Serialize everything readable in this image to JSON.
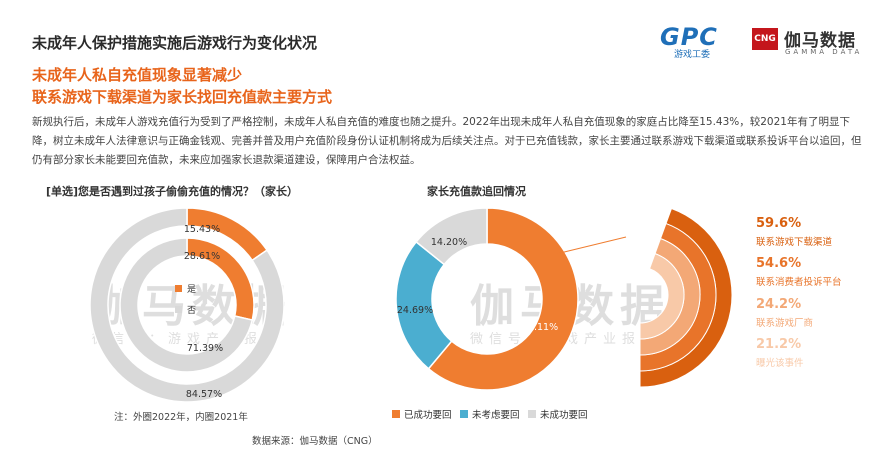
{
  "page_title": "未成年人保护措施实施后游戏行为变化状况",
  "logo_gpc": {
    "big": "GPC",
    "small": "游戏工委"
  },
  "logo_cng": {
    "mark": "CNG",
    "cn": "伽马数据",
    "en": "GAMMA DATA"
  },
  "headline": [
    "未成年人私自充值现象显著减少",
    "联系游戏下载渠道为家长找回充值款主要方式"
  ],
  "body_text": "新规执行后，未成年人游戏充值行为受到了严格控制，未成年人私自充值的难度也随之提升。2022年出现未成年人私自充值现象的家庭占比降至15.43%，较2021年有了明显下降，树立未成年人法律意识与正确金钱观、完善并普及用户充值阶段身份认证机制将成为后续关注点。对于已充值钱款，家长主要通过联系游戏下载渠道或联系投诉平台以追回，但仍有部分家长未能要回充值款，未来应加强家长退款渠道建设，保障用户合法权益。",
  "watermark": {
    "cn": "伽马数据",
    "sub": "微信号：游戏产业报告"
  },
  "note": "注：外圈2022年，内圈2021年",
  "source": "数据来源：伽马数据（CNG）",
  "colors": {
    "orange": "#ef7d30",
    "light_gray": "#d9d9d9",
    "teal": "#4baed0",
    "dark_orange": "#d9600f"
  },
  "chart_data": [
    {
      "type": "pie",
      "subtype": "nested-donut",
      "title": "[单选]您是否遇到过孩子偷偷充值的情况？（家长）",
      "legend": [
        "是",
        "否"
      ],
      "outer": {
        "name": "2022年",
        "values": [
          15.43,
          84.57
        ],
        "labels": [
          "15.43%",
          "84.57%"
        ]
      },
      "inner": {
        "name": "2021年",
        "values": [
          28.61,
          71.39
        ],
        "labels": [
          "28.61%",
          "71.39%"
        ]
      }
    },
    {
      "type": "pie",
      "subtype": "donut",
      "title": "家长充值款追回情况",
      "categories": [
        "已成功要回",
        "未考虑要回",
        "未成功要回"
      ],
      "values": [
        61.11,
        24.69,
        14.2
      ],
      "labels": [
        "61.11%",
        "24.69%",
        "14.20%"
      ]
    },
    {
      "type": "bar",
      "subtype": "stacked-arc",
      "categories": [
        "联系游戏下载渠道",
        "联系消费者投诉平台",
        "联系游戏厂商",
        "曝光该事件"
      ],
      "values": [
        59.6,
        54.6,
        24.2,
        21.2
      ],
      "labels": [
        "59.6%",
        "54.6%",
        "24.2%",
        "21.2%"
      ],
      "colors": [
        "#d9600f",
        "#e8742a",
        "#f3a876",
        "#f8c9a8"
      ]
    }
  ]
}
